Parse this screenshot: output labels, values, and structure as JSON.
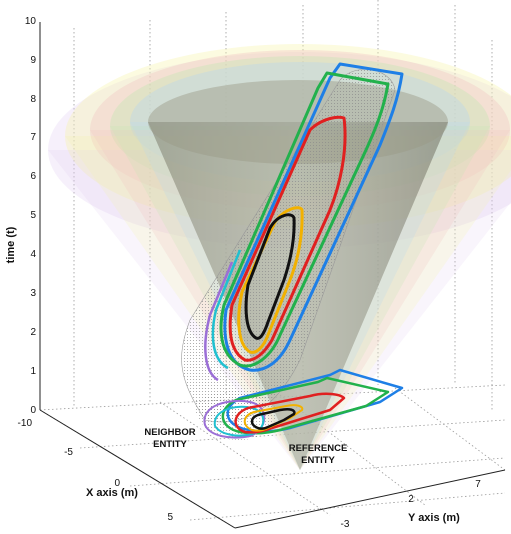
{
  "chart_data": {
    "type": "3d-surface-contour",
    "zlabel": "time (t)",
    "xlabel": "X axis (m)",
    "ylabel": "Y axis (m)",
    "z_ticks": [
      "0",
      "1",
      "2",
      "3",
      "4",
      "5",
      "6",
      "7",
      "8",
      "9",
      "10"
    ],
    "x_ticks": [
      "-10",
      "-5",
      "0",
      "5"
    ],
    "y_ticks": [
      "-3",
      "2",
      "7"
    ],
    "zlim": [
      0,
      10
    ],
    "grid": true,
    "annotations": {
      "neighbor": [
        "NEIGHBOR",
        "ENTITY"
      ],
      "reference": [
        "REFERENCE",
        "ENTITY"
      ]
    },
    "contour_colors": [
      "#1e7fe6",
      "#22b14c",
      "#e02020",
      "#f2b100",
      "#111111",
      "#9b6fd6",
      "#20c0d0"
    ],
    "cone_colors": [
      "#f7f3a6",
      "#f2c0c0",
      "#c6e7b3",
      "#b8d8ec",
      "#e0c8f0",
      "#8f8f84"
    ]
  }
}
